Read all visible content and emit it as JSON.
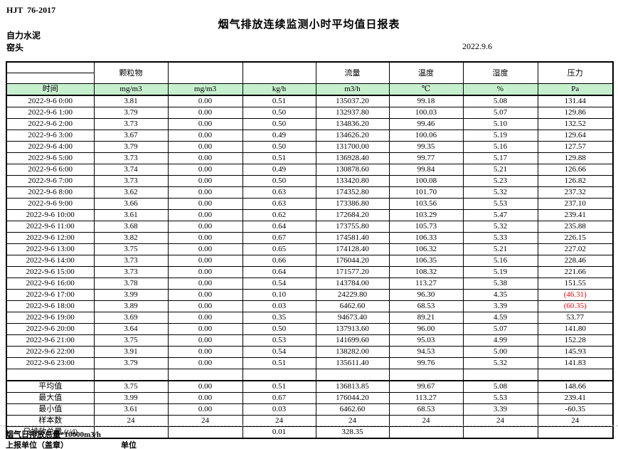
{
  "header": {
    "standard_no": "HJT  76-2017",
    "title": "烟气排放连续监测小时平均值日报表",
    "company": "自力水泥",
    "location": "窑头",
    "date": "2022.9.6"
  },
  "table": {
    "header_bg_color": "#c6efce",
    "negative_value_color": "#ff0000",
    "group_headers": [
      "",
      "颗粒物",
      "",
      "",
      "流量",
      "温度",
      "湿度",
      "压力"
    ],
    "unit_row": [
      "时间",
      "mg/m3",
      "mg/m3",
      "kg/h",
      "m3/h",
      "℃",
      "%",
      "Pa"
    ],
    "rows": [
      {
        "time": "2022-9-6 0:00",
        "values": [
          "3.81",
          "0.00",
          "0.51",
          "135037.20",
          "99.18",
          "5.08",
          "131.44"
        ]
      },
      {
        "time": "2022-9-6 1:00",
        "values": [
          "3.79",
          "0.00",
          "0.50",
          "132937.80",
          "100.03",
          "5.07",
          "129.86"
        ]
      },
      {
        "time": "2022-9-6 2:00",
        "values": [
          "3.73",
          "0.00",
          "0.50",
          "134836.20",
          "99.46",
          "5.10",
          "132.52"
        ]
      },
      {
        "time": "2022-9-6 3:00",
        "values": [
          "3.67",
          "0.00",
          "0.49",
          "134626.20",
          "100.06",
          "5.19",
          "129.64"
        ]
      },
      {
        "time": "2022-9-6 4:00",
        "values": [
          "3.79",
          "0.00",
          "0.50",
          "131700.00",
          "99.35",
          "5.16",
          "127.57"
        ]
      },
      {
        "time": "2022-9-6 5:00",
        "values": [
          "3.73",
          "0.00",
          "0.51",
          "136928.40",
          "99.77",
          "5.17",
          "129.88"
        ]
      },
      {
        "time": "2022-9-6 6:00",
        "values": [
          "3.74",
          "0.00",
          "0.49",
          "130878.60",
          "99.84",
          "5.21",
          "126.66"
        ]
      },
      {
        "time": "2022-9-6 7:00",
        "values": [
          "3.73",
          "0.00",
          "0.50",
          "133420.80",
          "100.08",
          "5.23",
          "126.82"
        ]
      },
      {
        "time": "2022-9-6 8:00",
        "values": [
          "3.62",
          "0.00",
          "0.63",
          "174352.80",
          "101.70",
          "5.32",
          "237.32"
        ]
      },
      {
        "time": "2022-9-6 9:00",
        "values": [
          "3.66",
          "0.00",
          "0.63",
          "173386.80",
          "103.56",
          "5.53",
          "237.10"
        ]
      },
      {
        "time": "2022-9-6 10:00",
        "values": [
          "3.61",
          "0.00",
          "0.62",
          "172684.20",
          "103.29",
          "5.47",
          "239.41"
        ]
      },
      {
        "time": "2022-9-6 11:00",
        "values": [
          "3.68",
          "0.00",
          "0.64",
          "173755.80",
          "105.73",
          "5.32",
          "235.88"
        ]
      },
      {
        "time": "2022-9-6 12:00",
        "values": [
          "3.82",
          "0.00",
          "0.67",
          "174581.40",
          "106.33",
          "5.33",
          "226.15"
        ]
      },
      {
        "time": "2022-9-6 13:00",
        "values": [
          "3.75",
          "0.00",
          "0.65",
          "174128.40",
          "106.32",
          "5.21",
          "227.02"
        ]
      },
      {
        "time": "2022-9-6 14:00",
        "values": [
          "3.73",
          "0.00",
          "0.66",
          "176044.20",
          "106.35",
          "5.16",
          "228.46"
        ]
      },
      {
        "time": "2022-9-6 15:00",
        "values": [
          "3.73",
          "0.00",
          "0.64",
          "171577.20",
          "108.32",
          "5.19",
          "221.66"
        ]
      },
      {
        "time": "2022-9-6 16:00",
        "values": [
          "3.78",
          "0.00",
          "0.54",
          "143784.00",
          "113.27",
          "5.38",
          "151.55"
        ]
      },
      {
        "time": "2022-9-6 17:00",
        "values": [
          "3.99",
          "0.00",
          "0.10",
          "24229.80",
          "96.30",
          "4.35",
          "(46.31)"
        ]
      },
      {
        "time": "2022-9-6 18:00",
        "values": [
          "3.89",
          "0.00",
          "0.03",
          "6462.60",
          "68.53",
          "3.39",
          "(60.35)"
        ]
      },
      {
        "time": "2022-9-6 19:00",
        "values": [
          "3.69",
          "0.00",
          "0.35",
          "94673.40",
          "89.21",
          "4.59",
          "53.77"
        ]
      },
      {
        "time": "2022-9-6 20:00",
        "values": [
          "3.64",
          "0.00",
          "0.50",
          "137913.60",
          "96.00",
          "5.07",
          "141.80"
        ]
      },
      {
        "time": "2022-9-6 21:00",
        "values": [
          "3.75",
          "0.00",
          "0.53",
          "141699.60",
          "95.03",
          "4.99",
          "152.28"
        ]
      },
      {
        "time": "2022-9-6 22:00",
        "values": [
          "3.91",
          "0.00",
          "0.54",
          "138282.00",
          "94.53",
          "5.00",
          "145.93"
        ]
      },
      {
        "time": "2022-9-6 23:00",
        "values": [
          "3.79",
          "0.00",
          "0.51",
          "135611.40",
          "99.76",
          "5.32",
          "141.83"
        ]
      }
    ],
    "summary": [
      {
        "label": "平均值",
        "values": [
          "3.75",
          "0.00",
          "0.51",
          "136813.85",
          "99.67",
          "5.08",
          "148.66"
        ]
      },
      {
        "label": "最大值",
        "values": [
          "3.99",
          "0.00",
          "0.67",
          "176044.20",
          "113.27",
          "5.53",
          "239.41"
        ]
      },
      {
        "label": "最小值",
        "values": [
          "3.61",
          "0.00",
          "0.03",
          "6462.60",
          "68.53",
          "3.39",
          "-60.35"
        ]
      },
      {
        "label": "样本数",
        "values": [
          "24",
          "24",
          "24",
          "24",
          "24",
          "24",
          "24"
        ]
      },
      {
        "label": "日排放总量 (t/d)",
        "values": [
          "",
          "",
          "0.01",
          "328.35",
          "",
          "",
          ""
        ]
      }
    ]
  },
  "footer": {
    "note": "烟气日排放总量*10000m3/h",
    "report_unit_label": "上报单位（盖章）",
    "unit_label": "单位"
  }
}
